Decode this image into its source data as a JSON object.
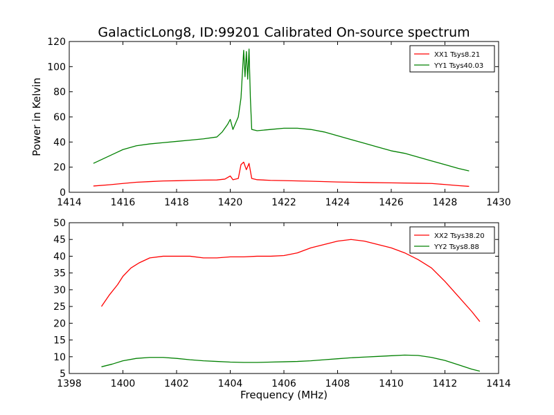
{
  "figure": {
    "title": "GalacticLong8, ID:99201 Calibrated On-source spectrum",
    "ylabel": "Power in Kelvin",
    "xlabel": "Frequency (MHz)"
  },
  "chart_data": [
    {
      "type": "line",
      "xlim": [
        1414,
        1430
      ],
      "ylim": [
        0,
        120
      ],
      "xticks": [
        "1414",
        "1416",
        "1418",
        "1420",
        "1422",
        "1424",
        "1426",
        "1428",
        "1430"
      ],
      "yticks": [
        "0",
        "20",
        "40",
        "60",
        "80",
        "100",
        "120"
      ],
      "legend_position": "top-right",
      "series": [
        {
          "name": "XX1 Tsys8.21",
          "color": "#ff0000",
          "x": [
            1414.9,
            1415.5,
            1416,
            1416.5,
            1417,
            1417.5,
            1418,
            1418.5,
            1419,
            1419.5,
            1419.8,
            1420.0,
            1420.1,
            1420.3,
            1420.4,
            1420.5,
            1420.6,
            1420.7,
            1420.8,
            1421.0,
            1421.5,
            1422,
            1423,
            1424,
            1425,
            1426,
            1427,
            1427.5,
            1428,
            1428.5,
            1428.9
          ],
          "y": [
            5,
            6,
            7,
            8,
            8.5,
            9,
            9.2,
            9.5,
            9.7,
            9.8,
            10.5,
            13,
            10,
            11,
            22,
            24,
            18,
            23,
            11,
            10,
            9.5,
            9.3,
            8.8,
            8.2,
            7.8,
            7.5,
            7.2,
            7.0,
            6.2,
            5.3,
            4.7
          ]
        },
        {
          "name": "YY1 Tsys40.03",
          "color": "#008000",
          "x": [
            1414.9,
            1415.3,
            1415.7,
            1416,
            1416.5,
            1417,
            1417.5,
            1418,
            1418.5,
            1419,
            1419.5,
            1419.7,
            1419.9,
            1420.0,
            1420.1,
            1420.2,
            1420.3,
            1420.4,
            1420.5,
            1420.55,
            1420.6,
            1420.65,
            1420.7,
            1420.75,
            1420.8,
            1421.0,
            1421.5,
            1422,
            1422.5,
            1423,
            1423.5,
            1424,
            1424.5,
            1425,
            1425.5,
            1426,
            1426.5,
            1427,
            1427.5,
            1428,
            1428.5,
            1428.9
          ],
          "y": [
            23,
            27,
            31,
            34,
            37,
            38.5,
            39.5,
            40.5,
            41.5,
            42.5,
            44,
            48,
            54,
            58,
            50,
            55,
            60,
            75,
            113,
            92,
            112,
            90,
            114,
            75,
            50,
            49,
            50,
            51,
            51,
            50,
            48,
            45,
            42,
            39,
            36,
            33,
            31,
            28,
            25,
            22,
            19,
            17
          ]
        }
      ]
    },
    {
      "type": "line",
      "xlim": [
        1398,
        1414
      ],
      "ylim": [
        5,
        50
      ],
      "xticks": [
        "1398",
        "1400",
        "1402",
        "1404",
        "1406",
        "1408",
        "1410",
        "1412",
        "1414"
      ],
      "yticks": [
        "5",
        "10",
        "15",
        "20",
        "25",
        "30",
        "35",
        "40",
        "45",
        "50"
      ],
      "legend_position": "top-right",
      "series": [
        {
          "name": "XX2 Tsys38.20",
          "color": "#ff0000",
          "x": [
            1399.2,
            1399.5,
            1399.8,
            1400.0,
            1400.3,
            1400.6,
            1401.0,
            1401.5,
            1402.0,
            1402.5,
            1403.0,
            1403.5,
            1404.0,
            1404.5,
            1405.0,
            1405.5,
            1406.0,
            1406.5,
            1407.0,
            1407.5,
            1408.0,
            1408.5,
            1409.0,
            1409.5,
            1410.0,
            1410.5,
            1411.0,
            1411.5,
            1412.0,
            1412.5,
            1413.0,
            1413.3
          ],
          "y": [
            25,
            28.5,
            31.5,
            34,
            36.5,
            38,
            39.5,
            40,
            40,
            40,
            39.5,
            39.5,
            39.8,
            39.8,
            40,
            40,
            40.2,
            41,
            42.5,
            43.5,
            44.5,
            45,
            44.5,
            43.5,
            42.5,
            41,
            39,
            36.5,
            32.5,
            28,
            23.5,
            20.5
          ]
        },
        {
          "name": "YY2 Tsys8.88",
          "color": "#008000",
          "x": [
            1399.2,
            1399.6,
            1400.0,
            1400.5,
            1401.0,
            1401.5,
            1402.0,
            1402.5,
            1403.0,
            1403.5,
            1404.0,
            1404.5,
            1405.0,
            1405.5,
            1406.0,
            1406.5,
            1407.0,
            1407.5,
            1408.0,
            1408.5,
            1409.0,
            1409.5,
            1410.0,
            1410.5,
            1411.0,
            1411.5,
            1412.0,
            1412.5,
            1413.0,
            1413.3
          ],
          "y": [
            7,
            7.8,
            8.8,
            9.5,
            9.8,
            9.8,
            9.5,
            9.1,
            8.8,
            8.6,
            8.4,
            8.3,
            8.3,
            8.4,
            8.5,
            8.6,
            8.8,
            9.1,
            9.4,
            9.7,
            9.9,
            10.1,
            10.3,
            10.5,
            10.4,
            9.8,
            8.9,
            7.6,
            6.3,
            5.7
          ]
        }
      ]
    }
  ]
}
